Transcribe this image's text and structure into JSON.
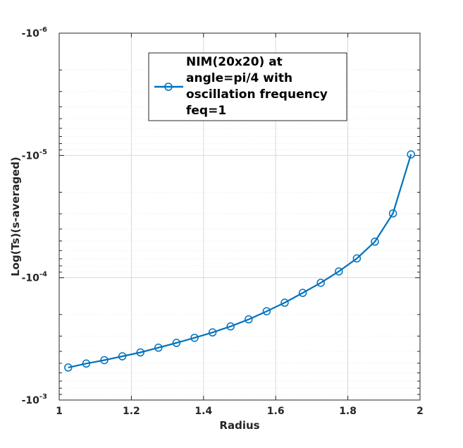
{
  "chart_data": {
    "type": "line",
    "title": "",
    "xlabel": "Radius",
    "ylabel": "Log(Ts)(s-averaged)",
    "xlim": [
      1,
      2
    ],
    "ylim": [
      -0.001,
      -1e-06
    ],
    "yscale": "log-negative",
    "grid": true,
    "minor_grid": true,
    "x_ticks": [
      "1",
      "1.2",
      "1.4",
      "1.6",
      "1.8",
      "2"
    ],
    "y_ticks": [
      {
        "base": "-10",
        "exp": "-6"
      },
      {
        "base": "-10",
        "exp": "-5"
      },
      {
        "base": "-10",
        "exp": "-4"
      },
      {
        "base": "-10",
        "exp": "-3"
      }
    ],
    "legend": {
      "placement": "top-center",
      "lines": [
        "NIM(20x20) at",
        "angle=pi/4 with",
        "oscillation frequency",
        "feq=1"
      ]
    },
    "colors": {
      "series": "#0072bd",
      "grid": "#d9d9d9",
      "axis": "#262626"
    },
    "series": [
      {
        "marker": "circle",
        "x": [
          1.025,
          1.075,
          1.125,
          1.175,
          1.225,
          1.275,
          1.325,
          1.375,
          1.425,
          1.475,
          1.525,
          1.575,
          1.625,
          1.675,
          1.725,
          1.775,
          1.825,
          1.875,
          1.925,
          1.975
        ],
        "y": [
          -0.000542,
          -0.000503,
          -0.000472,
          -0.000439,
          -0.000408,
          -0.000373,
          -0.000341,
          -0.00031,
          -0.00028,
          -0.00025,
          -0.000219,
          -0.000188,
          -0.00016,
          -0.000133,
          -0.00011,
          -8.88e-05,
          -6.95e-05,
          -5.07e-05,
          -2.98e-05,
          -9.8e-06
        ]
      }
    ]
  }
}
